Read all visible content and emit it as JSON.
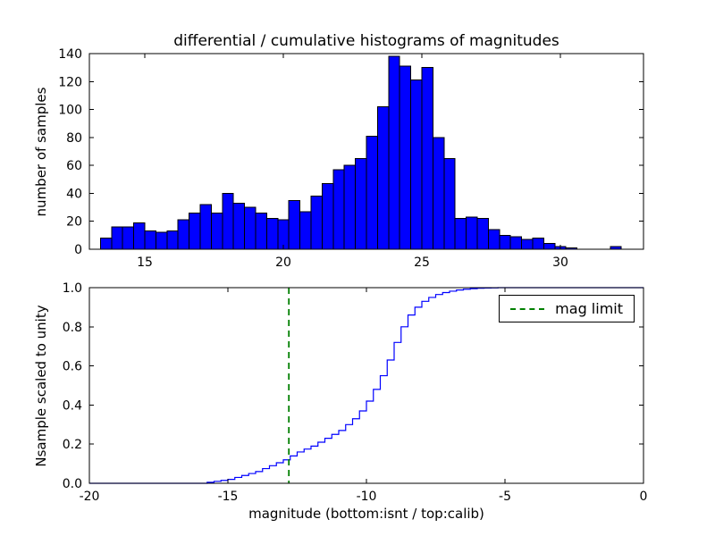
{
  "figure": {
    "title": "differential / cumulative histograms of magnitudes",
    "xlabel": "magnitude (bottom:isnt / top:calib)",
    "top_ylabel": "number of samples",
    "bottom_ylabel": "Nsample scaled to unity",
    "legend": {
      "label": "mag limit"
    },
    "colors": {
      "bar_fill": "#0000ff",
      "bar_edge": "#000000",
      "step_line": "#0000ff",
      "mag_limit_line": "#008000",
      "axes": "#000000",
      "background": "#ffffff"
    }
  },
  "chart_data": [
    {
      "type": "bar",
      "subplot": "top",
      "title": "differential / cumulative histograms of magnitudes",
      "ylabel": "number of samples",
      "bin_start": 13.4,
      "bin_width": 0.4,
      "values": [
        8,
        16,
        16,
        19,
        13,
        12,
        13,
        21,
        26,
        32,
        26,
        40,
        33,
        30,
        26,
        22,
        21,
        35,
        27,
        38,
        47,
        57,
        60,
        65,
        81,
        102,
        138,
        131,
        121,
        130,
        80,
        65,
        22,
        23,
        22,
        14,
        10,
        9,
        7,
        8,
        4,
        2,
        1,
        0,
        0,
        0,
        2
      ],
      "xlim": [
        13,
        33
      ],
      "ylim": [
        0,
        140
      ],
      "x_ticks": [
        15,
        20,
        25,
        30
      ],
      "y_ticks": [
        0,
        20,
        40,
        60,
        80,
        100,
        120,
        140
      ],
      "grid": false
    },
    {
      "type": "line",
      "subplot": "bottom",
      "style": "step-cumulative",
      "ylabel": "Nsample scaled to unity",
      "xlabel": "magnitude (bottom:isnt / top:calib)",
      "x": [
        -15.75,
        -15.5,
        -15.25,
        -15.0,
        -14.75,
        -14.5,
        -14.25,
        -14.0,
        -13.75,
        -13.5,
        -13.25,
        -13.0,
        -12.75,
        -12.5,
        -12.25,
        -12.0,
        -11.75,
        -11.5,
        -11.25,
        -11.0,
        -10.75,
        -10.5,
        -10.25,
        -10.0,
        -9.75,
        -9.5,
        -9.25,
        -9.0,
        -8.75,
        -8.5,
        -8.25,
        -8.0,
        -7.75,
        -7.5,
        -7.25,
        -7.0,
        -6.75,
        -6.5,
        -6.25,
        -6.0,
        -5.75,
        -5.5,
        -5.25
      ],
      "y": [
        0.005,
        0.01,
        0.015,
        0.02,
        0.03,
        0.04,
        0.05,
        0.06,
        0.075,
        0.09,
        0.105,
        0.12,
        0.14,
        0.16,
        0.175,
        0.19,
        0.21,
        0.23,
        0.25,
        0.27,
        0.3,
        0.33,
        0.37,
        0.42,
        0.48,
        0.55,
        0.63,
        0.72,
        0.8,
        0.86,
        0.9,
        0.93,
        0.95,
        0.965,
        0.975,
        0.982,
        0.988,
        0.992,
        0.995,
        0.997,
        0.998,
        0.999,
        1.0
      ],
      "xlim": [
        -20,
        0
      ],
      "ylim": [
        0,
        1
      ],
      "x_ticks": [
        -20,
        -15,
        -10,
        -5,
        0
      ],
      "y_ticks": [
        0,
        0.2,
        0.4,
        0.6,
        0.8,
        1.0
      ],
      "y_tick_labels": [
        "0.0",
        "0.2",
        "0.4",
        "0.6",
        "0.8",
        "1.0"
      ],
      "mag_limit_x": -12.8,
      "legend": [
        "mag limit"
      ],
      "legend_position": "upper right",
      "grid": false
    }
  ]
}
